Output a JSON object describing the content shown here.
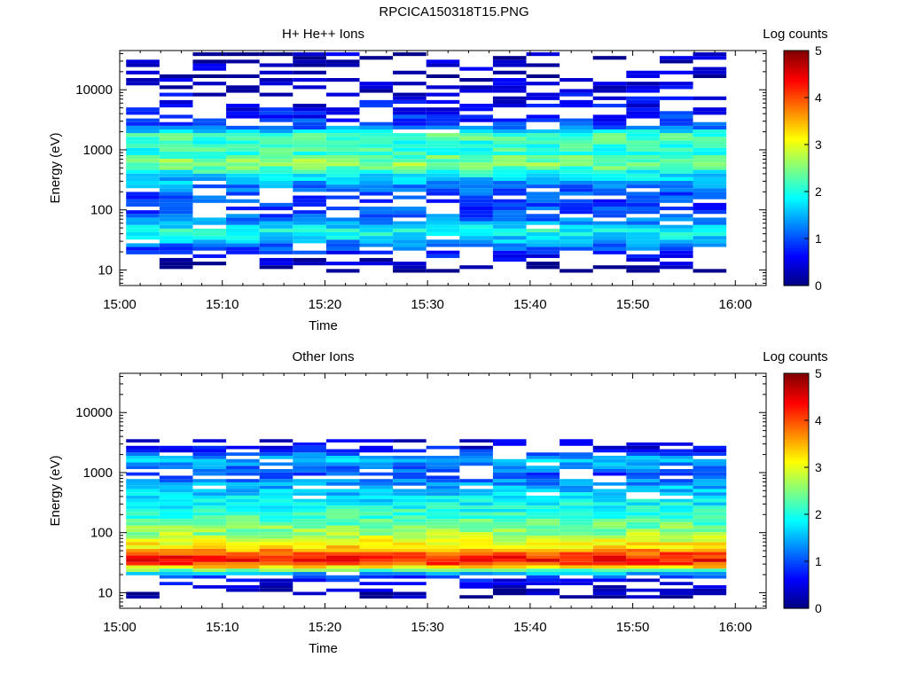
{
  "figure": {
    "title": "RPCICA150318T15.PNG",
    "background_color": "#ffffff",
    "colormap": "jet",
    "empty_cell_color": "#ffffff"
  },
  "chart_data": [
    {
      "type": "heatmap",
      "title": "H+ He++ Ions",
      "xlabel": "Time",
      "ylabel": "Energy (eV)",
      "x_range": [
        "15:00",
        "16:03"
      ],
      "x_ticks": [
        "15:00",
        "15:10",
        "15:20",
        "15:30",
        "15:40",
        "15:50",
        "16:00"
      ],
      "y_scale": "log",
      "y_range": [
        5.5,
        45000
      ],
      "y_ticks": [
        "10",
        "100",
        "1000",
        "10000"
      ],
      "colorbar": {
        "label": "Log counts",
        "range": [
          0,
          5
        ],
        "ticks": [
          "0",
          "1",
          "2",
          "3",
          "4",
          "5"
        ]
      },
      "time_bins": [
        "15:02:15",
        "15:05:30",
        "15:08:45",
        "15:12:00",
        "15:15:15",
        "15:18:30",
        "15:21:45",
        "15:25:00",
        "15:28:15",
        "15:31:30",
        "15:34:45",
        "15:38:00",
        "15:41:15",
        "15:44:30",
        "15:47:45",
        "15:51:00",
        "15:54:15",
        "15:57:30"
      ],
      "profile": {
        "description": "log counts vs energy",
        "energy_eV": [
          10,
          17,
          25,
          35,
          45,
          60,
          90,
          150,
          250,
          400,
          600,
          900,
          1300,
          1700,
          2500,
          4000,
          7000,
          12000,
          20000,
          40000
        ],
        "log_counts": [
          0.0,
          0.6,
          1.2,
          1.7,
          2.0,
          1.4,
          1.0,
          0.9,
          1.3,
          1.9,
          2.6,
          2.1,
          2.1,
          2.4,
          1.0,
          0.7,
          0.5,
          0.4,
          0.3,
          0.3
        ]
      }
    },
    {
      "type": "heatmap",
      "title": "Other Ions",
      "xlabel": "Time",
      "ylabel": "Energy (eV)",
      "x_range": [
        "15:00",
        "16:03"
      ],
      "x_ticks": [
        "15:00",
        "15:10",
        "15:20",
        "15:30",
        "15:40",
        "15:50",
        "16:00"
      ],
      "y_scale": "log",
      "y_range": [
        5.5,
        45000
      ],
      "y_ticks": [
        "10",
        "100",
        "1000",
        "10000"
      ],
      "colorbar": {
        "label": "Log counts",
        "range": [
          0,
          5
        ],
        "ticks": [
          "0",
          "1",
          "2",
          "3",
          "4",
          "5"
        ]
      },
      "time_bins": [
        "15:02:15",
        "15:05:30",
        "15:08:45",
        "15:12:00",
        "15:15:15",
        "15:18:30",
        "15:21:45",
        "15:25:00",
        "15:28:15",
        "15:31:30",
        "15:34:45",
        "15:38:00",
        "15:41:15",
        "15:44:30",
        "15:47:45",
        "15:51:00",
        "15:54:15",
        "15:57:30"
      ],
      "profile": {
        "description": "log counts vs energy",
        "energy_eV": [
          8,
          10,
          15,
          20,
          25,
          30,
          35,
          40,
          50,
          60,
          80,
          100,
          150,
          250,
          400,
          600,
          900,
          1300,
          1700,
          2500,
          3500
        ],
        "log_counts": [
          0.2,
          0.2,
          0.5,
          1.2,
          2.8,
          4.0,
          4.3,
          4.2,
          3.6,
          3.2,
          2.9,
          2.6,
          2.3,
          2.0,
          1.7,
          1.5,
          0.9,
          1.3,
          1.6,
          0.6,
          0.4
        ]
      }
    }
  ]
}
